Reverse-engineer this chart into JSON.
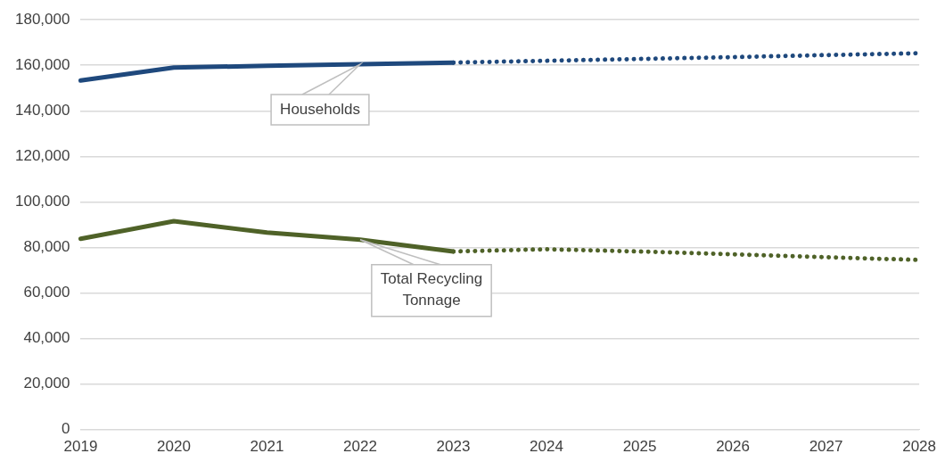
{
  "chart_data": {
    "type": "line",
    "categories": [
      "2019",
      "2020",
      "2021",
      "2022",
      "2023",
      "2024",
      "2025",
      "2026",
      "2027",
      "2028"
    ],
    "series": [
      {
        "color": "#1f497d",
        "line_style": "solid",
        "values": [
          153300,
          159000,
          159800,
          160500,
          161200,
          null,
          null,
          null,
          null,
          null
        ]
      },
      {
        "color": "#1f497d",
        "line_style": "dotted",
        "values": [
          null,
          null,
          null,
          null,
          161200,
          162000,
          162800,
          163600,
          164500,
          165300
        ]
      },
      {
        "color": "#4f6228",
        "line_style": "solid",
        "values": [
          83800,
          91500,
          86500,
          83400,
          78200,
          null,
          null,
          null,
          null,
          null
        ]
      },
      {
        "color": "#4f6228",
        "line_style": "dotted",
        "values": [
          null,
          null,
          null,
          null,
          78200,
          79200,
          78200,
          77000,
          75700,
          74500
        ]
      }
    ],
    "ylim": [
      0,
      180000
    ],
    "yticks": [
      0,
      {
        "value": 20000,
        "label": "20,000"
      },
      {
        "value": 40000,
        "label": "40,000"
      },
      {
        "value": 60000,
        "label": "60,000"
      },
      {
        "value": 80000,
        "label": "80,000"
      },
      {
        "value": 100000,
        "label": "100,000"
      },
      {
        "value": 120000,
        "label": "120,000"
      },
      {
        "value": 140000,
        "label": "140,000"
      },
      {
        "value": 160000,
        "label": "160,000"
      },
      {
        "value": 180000,
        "label": "180,000"
      }
    ],
    "grid": "y",
    "legend": false,
    "marker": "none",
    "annotations": [
      {
        "text": "Households",
        "x": "2022",
        "y": 160500
      },
      {
        "text": "Total Recycling Tonnage",
        "x": "2022",
        "y": 83400
      }
    ]
  }
}
